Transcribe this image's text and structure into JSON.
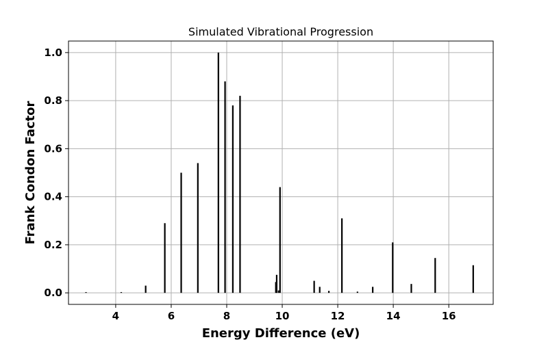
{
  "chart_data": {
    "type": "bar",
    "title": "Simulated Vibrational Progression",
    "xlabel": "Energy Difference (eV)",
    "ylabel": "Frank Condon Factor",
    "xlim": [
      2.3,
      17.6
    ],
    "ylim": [
      -0.048,
      1.048
    ],
    "x_ticks": [
      4,
      6,
      8,
      10,
      12,
      14,
      16
    ],
    "x_tick_labels": [
      "4",
      "6",
      "8",
      "10",
      "12",
      "14",
      "16"
    ],
    "y_ticks": [
      0.0,
      0.2,
      0.4,
      0.6,
      0.8,
      1.0
    ],
    "y_tick_labels": [
      "0.0",
      "0.2",
      "0.4",
      "0.6",
      "0.8",
      "1.0"
    ],
    "grid": true,
    "bar_color": "#000000",
    "x": [
      2.93,
      4.2,
      5.08,
      5.77,
      6.36,
      6.96,
      7.7,
      7.94,
      8.22,
      8.48,
      9.77,
      9.8,
      9.87,
      9.92,
      11.15,
      11.35,
      11.68,
      12.15,
      12.71,
      13.26,
      13.98,
      14.65,
      15.51,
      16.88
    ],
    "values": [
      0.003,
      0.003,
      0.03,
      0.29,
      0.5,
      0.54,
      1.0,
      0.88,
      0.78,
      0.82,
      0.045,
      0.075,
      0.01,
      0.44,
      0.05,
      0.025,
      0.008,
      0.31,
      0.005,
      0.025,
      0.21,
      0.037,
      0.145,
      0.115
    ]
  }
}
